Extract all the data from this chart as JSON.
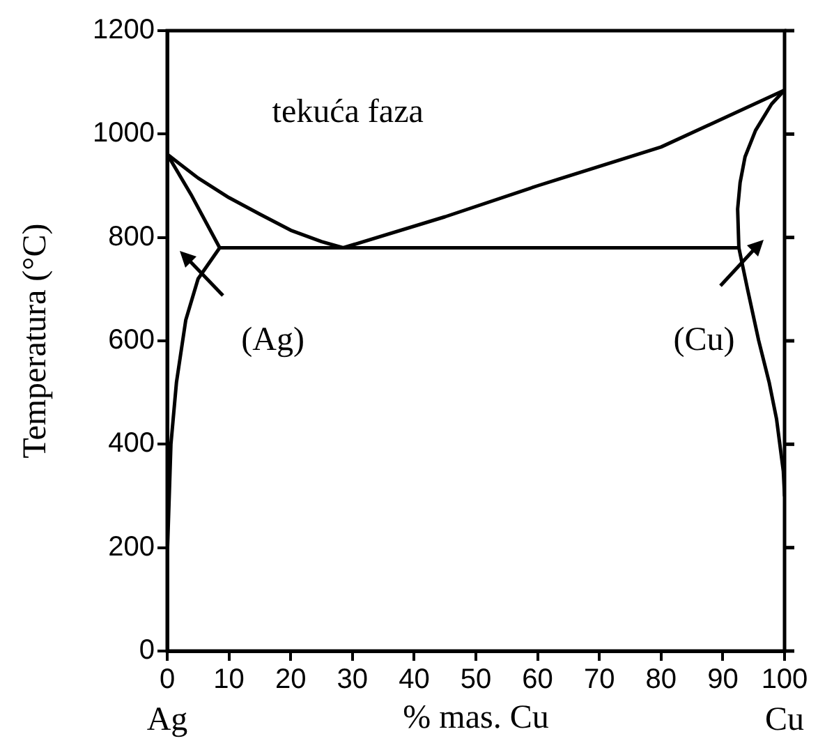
{
  "chart_data": {
    "type": "line",
    "xlabel": "% mas. Cu",
    "ylabel": "Temperatura (°C)",
    "xlim": [
      0,
      100
    ],
    "xticks": [
      0,
      10,
      20,
      30,
      40,
      50,
      60,
      70,
      80,
      90,
      100
    ],
    "ylim": [
      0,
      1200
    ],
    "yticks": [
      0,
      200,
      400,
      600,
      800,
      1000,
      1200
    ],
    "grid": false,
    "legend": false,
    "marker": "none",
    "line_style": "solid",
    "annotations": [
      "tekuća faza",
      "(Ag)",
      "(Cu)",
      "Ag",
      "Cu"
    ],
    "series": [
      {
        "color": "#000000",
        "x": [
          0,
          5,
          10,
          15,
          20,
          25,
          28.5
        ],
        "values": [
          961,
          915,
          877,
          845,
          814,
          792,
          780
        ]
      },
      {
        "color": "#000000",
        "x": [
          0,
          4,
          8.5
        ],
        "values": [
          961,
          880,
          780
        ]
      },
      {
        "color": "#000000",
        "x": [
          8.5,
          5,
          3,
          1.5,
          0.6,
          0
        ],
        "values": [
          780,
          720,
          640,
          520,
          400,
          180
        ]
      },
      {
        "color": "#000000",
        "x": [
          28.5,
          45,
          60,
          80,
          100
        ],
        "values": [
          780,
          840,
          900,
          975,
          1085
        ]
      },
      {
        "color": "#000000",
        "x": [
          8.5,
          92.6
        ],
        "values": [
          780,
          780
        ]
      },
      {
        "color": "#000000",
        "x": [
          100,
          97.9,
          95.3,
          93.6,
          92.8,
          92.4,
          92.6,
          94,
          95.8,
          97.5,
          98.7,
          99.8,
          100
        ],
        "values": [
          1085,
          1058,
          1007,
          956,
          906,
          855,
          780,
          700,
          601,
          520,
          449,
          348,
          300
        ]
      }
    ]
  }
}
